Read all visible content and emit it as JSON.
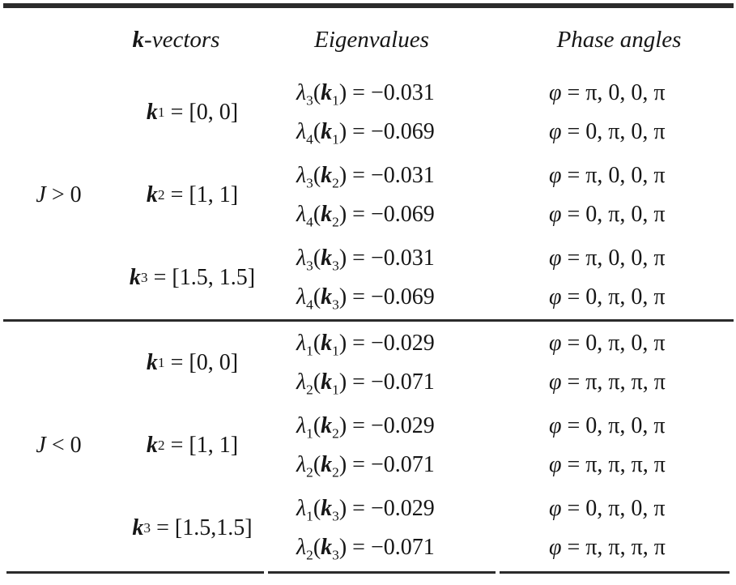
{
  "colors": {
    "background": "#ffffff",
    "text": "#161616",
    "rule": "#2b2b2b"
  },
  "header": {
    "kvectors_k": "k",
    "kvectors_rest": "-vectors",
    "eigenvalues": "Eigenvalues",
    "phase_angles": "Phase angles"
  },
  "symbols": {
    "lambda": "λ",
    "k": "k",
    "phi": "φ",
    "lparen": "("
  },
  "groups": [
    {
      "label_sym": "J",
      "label_rel": " > 0",
      "rows": [
        {
          "ksub": "1",
          "kval": " = [0, 0]",
          "eigs": [
            {
              "lsub": "3",
              "ksub": "1",
              "val": ") = −0.031"
            },
            {
              "lsub": "4",
              "ksub": "1",
              "val": ") = −0.069"
            }
          ],
          "phases": [
            " = π, 0, 0, π",
            " = 0, π, 0, π"
          ]
        },
        {
          "ksub": "2",
          "kval": " = [1, 1]",
          "eigs": [
            {
              "lsub": "3",
              "ksub": "2",
              "val": ") = −0.031"
            },
            {
              "lsub": "4",
              "ksub": "2",
              "val": ") = −0.069"
            }
          ],
          "phases": [
            " = π, 0, 0, π",
            " = 0, π, 0, π"
          ]
        },
        {
          "ksub": "3",
          "kval": " = [1.5, 1.5]",
          "eigs": [
            {
              "lsub": "3",
              "ksub": "3",
              "val": ") = −0.031"
            },
            {
              "lsub": "4",
              "ksub": "3",
              "val": ") = −0.069"
            }
          ],
          "phases": [
            " = π, 0, 0, π",
            " = 0, π, 0, π"
          ]
        }
      ]
    },
    {
      "label_sym": "J",
      "label_rel": " < 0",
      "rows": [
        {
          "ksub": "1",
          "kval": " = [0, 0]",
          "eigs": [
            {
              "lsub": "1",
              "ksub": "1",
              "val": ") = −0.029"
            },
            {
              "lsub": "2",
              "ksub": "1",
              "val": ") = −0.071"
            }
          ],
          "phases": [
            " = 0, π, 0, π",
            " = π, π, π, π"
          ]
        },
        {
          "ksub": "2",
          "kval": " = [1, 1]",
          "eigs": [
            {
              "lsub": "1",
              "ksub": "2",
              "val": ") = −0.029"
            },
            {
              "lsub": "2",
              "ksub": "2",
              "val": ") = −0.071"
            }
          ],
          "phases": [
            " = 0, π, 0, π",
            " = π, π, π, π"
          ]
        },
        {
          "ksub": "3",
          "kval": " = [1.5,1.5]",
          "eigs": [
            {
              "lsub": "1",
              "ksub": "3",
              "val": ") = −0.029"
            },
            {
              "lsub": "2",
              "ksub": "3",
              "val": ") = −0.071"
            }
          ],
          "phases": [
            " = 0, π, 0, π",
            " = π, π, π, π"
          ]
        }
      ]
    }
  ]
}
